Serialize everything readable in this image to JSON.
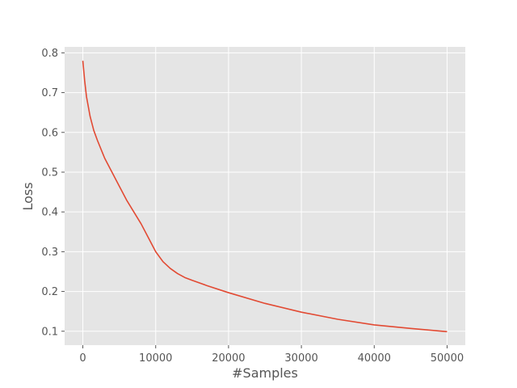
{
  "chart_data": {
    "type": "line",
    "title": "",
    "xlabel": "#Samples",
    "ylabel": "Loss",
    "xlim": [
      -2500,
      52500
    ],
    "ylim": [
      0.065,
      0.815
    ],
    "xticks": [
      0,
      10000,
      20000,
      30000,
      40000,
      50000
    ],
    "yticks": [
      0.1,
      0.2,
      0.3,
      0.4,
      0.5,
      0.6,
      0.7,
      0.8
    ],
    "grid": true,
    "legend": "none",
    "style": {
      "background": "#e5e5e5",
      "grid_color": "#ffffff",
      "line_color": "#e24a33"
    },
    "series": [
      {
        "x": [
          0,
          250,
          500,
          1000,
          1500,
          2000,
          3000,
          4000,
          5000,
          6000,
          7000,
          8000,
          9000,
          10000,
          11000,
          12000,
          13000,
          14000,
          15000,
          17000,
          20000,
          25000,
          30000,
          35000,
          40000,
          45000,
          50000
        ],
        "values": [
          0.78,
          0.73,
          0.69,
          0.64,
          0.605,
          0.58,
          0.535,
          0.5,
          0.465,
          0.43,
          0.4,
          0.37,
          0.335,
          0.3,
          0.275,
          0.258,
          0.245,
          0.235,
          0.228,
          0.215,
          0.197,
          0.17,
          0.148,
          0.13,
          0.116,
          0.107,
          0.099
        ]
      }
    ]
  }
}
